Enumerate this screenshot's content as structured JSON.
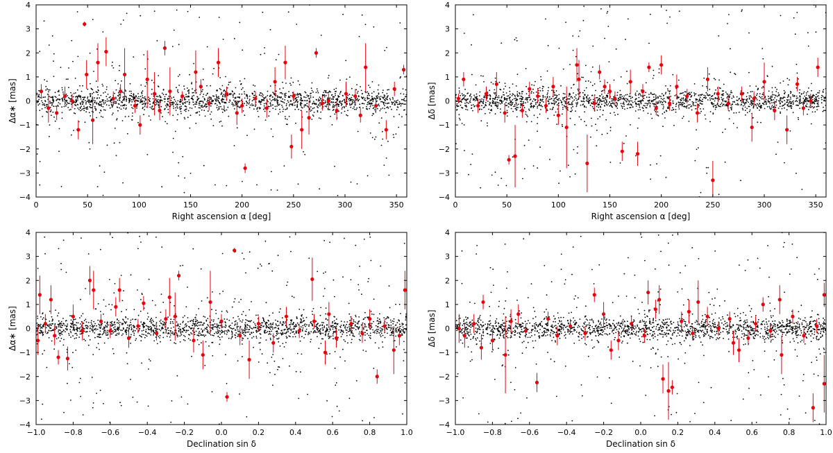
{
  "chart_data": [
    {
      "id": "ra-dalpha",
      "type": "scatter",
      "xlabel": "Right ascension α [deg]",
      "ylabel": "Δα∗ [mas]",
      "xlim": [
        0,
        360
      ],
      "ylim": [
        -4,
        4
      ],
      "xticks": [
        0,
        50,
        100,
        150,
        200,
        250,
        300,
        350
      ],
      "yticks": [
        -4,
        -3,
        -2,
        -1,
        0,
        1,
        2,
        3,
        4
      ],
      "grid": false,
      "series_colors": {
        "background": "#000000",
        "highlight": "#e8000b"
      },
      "highlight_points": [
        {
          "x": 47,
          "y": 3.2,
          "err": 0.1
        },
        {
          "x": 203,
          "y": -2.8,
          "err": 0.2
        },
        {
          "x": 248,
          "y": -1.9,
          "err": 0.5
        },
        {
          "x": 125,
          "y": 2.2,
          "err": 0.3
        },
        {
          "x": 272,
          "y": 2.0,
          "err": 0.2
        },
        {
          "x": 68,
          "y": 2.05,
          "err": 0.6
        },
        {
          "x": 60,
          "y": 1.6,
          "err": 0.8
        },
        {
          "x": 177,
          "y": 1.6,
          "err": 0.6
        },
        {
          "x": 242,
          "y": 1.6,
          "err": 0.7
        },
        {
          "x": 86,
          "y": 1.1,
          "err": 1.1
        },
        {
          "x": 49,
          "y": 1.1,
          "err": 0.6
        },
        {
          "x": 320,
          "y": 1.4,
          "err": 1.0
        },
        {
          "x": 357,
          "y": 1.3,
          "err": 0.2
        },
        {
          "x": 41,
          "y": -1.2,
          "err": 0.4
        },
        {
          "x": 101,
          "y": -1.0,
          "err": 0.4
        },
        {
          "x": 258,
          "y": -1.2,
          "err": 0.8
        },
        {
          "x": 340,
          "y": -1.2,
          "err": 0.4
        },
        {
          "x": 108,
          "y": 0.9,
          "err": 1.2
        },
        {
          "x": 155,
          "y": 1.2,
          "err": 0.9
        },
        {
          "x": 115,
          "y": 0.3,
          "err": 0.9
        },
        {
          "x": 130,
          "y": 0.4,
          "err": 1.0
        },
        {
          "x": 195,
          "y": -0.5,
          "err": 0.5
        },
        {
          "x": 232,
          "y": 0.8,
          "err": 0.6
        },
        {
          "x": 265,
          "y": -0.7,
          "err": 0.7
        },
        {
          "x": 301,
          "y": 0.3,
          "err": 0.5
        },
        {
          "x": 12,
          "y": -0.3,
          "err": 0.6
        },
        {
          "x": 28,
          "y": 0.2,
          "err": 0.4
        },
        {
          "x": 55,
          "y": -0.8,
          "err": 1.0
        },
        {
          "x": 75,
          "y": 0.1,
          "err": 0.3
        },
        {
          "x": 96,
          "y": -0.2,
          "err": 0.3
        },
        {
          "x": 142,
          "y": 0.2,
          "err": 0.2
        },
        {
          "x": 168,
          "y": -0.1,
          "err": 0.3
        },
        {
          "x": 185,
          "y": 0.3,
          "err": 0.3
        },
        {
          "x": 213,
          "y": 0.1,
          "err": 0.3
        },
        {
          "x": 224,
          "y": -0.3,
          "err": 0.4
        },
        {
          "x": 284,
          "y": 0.0,
          "err": 0.3
        },
        {
          "x": 292,
          "y": -0.4,
          "err": 0.4
        },
        {
          "x": 310,
          "y": 0.2,
          "err": 0.3
        },
        {
          "x": 330,
          "y": -0.2,
          "err": 0.3
        },
        {
          "x": 348,
          "y": 0.5,
          "err": 0.3
        },
        {
          "x": 5,
          "y": 0.4,
          "err": 0.3
        },
        {
          "x": 20,
          "y": -0.5,
          "err": 0.3
        },
        {
          "x": 35,
          "y": 0.0,
          "err": 0.3
        },
        {
          "x": 82,
          "y": 0.4,
          "err": 0.3
        },
        {
          "x": 120,
          "y": -0.4,
          "err": 0.4
        },
        {
          "x": 160,
          "y": 0.6,
          "err": 0.3
        },
        {
          "x": 200,
          "y": -0.2,
          "err": 0.3
        },
        {
          "x": 250,
          "y": 0.2,
          "err": 0.2
        },
        {
          "x": 278,
          "y": -0.1,
          "err": 0.3
        },
        {
          "x": 315,
          "y": -0.6,
          "err": 0.3
        }
      ]
    },
    {
      "id": "ra-ddelta",
      "type": "scatter",
      "xlabel": "Right ascension α [deg]",
      "ylabel": "Δδ [mas]",
      "xlim": [
        0,
        360
      ],
      "ylim": [
        -4,
        4
      ],
      "xticks": [
        0,
        50,
        100,
        150,
        200,
        250,
        300,
        350
      ],
      "yticks": [
        -4,
        -3,
        -2,
        -1,
        0,
        1,
        2,
        3,
        4
      ],
      "grid": false,
      "series_colors": {
        "background": "#000000",
        "highlight": "#e8000b"
      },
      "highlight_points": [
        {
          "x": 250,
          "y": -3.3,
          "err": 0.8
        },
        {
          "x": 128,
          "y": -2.6,
          "err": 1.2
        },
        {
          "x": 58,
          "y": -2.3,
          "err": 1.3
        },
        {
          "x": 162,
          "y": -2.1,
          "err": 0.4
        },
        {
          "x": 177,
          "y": -2.2,
          "err": 0.5
        },
        {
          "x": 52,
          "y": -2.45,
          "err": 0.2
        },
        {
          "x": 170,
          "y": 0.8,
          "err": 0.5
        },
        {
          "x": 118,
          "y": 1.5,
          "err": 0.7
        },
        {
          "x": 120,
          "y": 0.9,
          "err": 0.8
        },
        {
          "x": 200,
          "y": 1.5,
          "err": 0.4
        },
        {
          "x": 352,
          "y": 1.4,
          "err": 0.4
        },
        {
          "x": 140,
          "y": 1.2,
          "err": 0.3
        },
        {
          "x": 188,
          "y": 1.4,
          "err": 0.2
        },
        {
          "x": 108,
          "y": -1.1,
          "err": 1.7
        },
        {
          "x": 288,
          "y": -1.1,
          "err": 0.6
        },
        {
          "x": 8,
          "y": 0.9,
          "err": 0.3
        },
        {
          "x": 40,
          "y": 0.7,
          "err": 0.5
        },
        {
          "x": 95,
          "y": 0.6,
          "err": 0.4
        },
        {
          "x": 150,
          "y": 0.4,
          "err": 0.3
        },
        {
          "x": 215,
          "y": 0.6,
          "err": 0.5
        },
        {
          "x": 245,
          "y": 0.9,
          "err": 0.5
        },
        {
          "x": 300,
          "y": 0.8,
          "err": 0.8
        },
        {
          "x": 332,
          "y": 0.7,
          "err": 0.3
        },
        {
          "x": 22,
          "y": -0.2,
          "err": 0.3
        },
        {
          "x": 65,
          "y": -0.4,
          "err": 0.3
        },
        {
          "x": 80,
          "y": 0.2,
          "err": 0.3
        },
        {
          "x": 100,
          "y": -0.6,
          "err": 0.4
        },
        {
          "x": 135,
          "y": -0.1,
          "err": 0.3
        },
        {
          "x": 155,
          "y": 0.1,
          "err": 0.3
        },
        {
          "x": 195,
          "y": -0.3,
          "err": 0.3
        },
        {
          "x": 225,
          "y": 0.2,
          "err": 0.3
        },
        {
          "x": 235,
          "y": -0.5,
          "err": 0.4
        },
        {
          "x": 265,
          "y": -0.1,
          "err": 0.3
        },
        {
          "x": 278,
          "y": 0.3,
          "err": 0.3
        },
        {
          "x": 310,
          "y": -0.4,
          "err": 0.4
        },
        {
          "x": 322,
          "y": -1.2,
          "err": 0.6
        },
        {
          "x": 345,
          "y": 0.0,
          "err": 0.3
        },
        {
          "x": 3,
          "y": 0.1,
          "err": 0.2
        },
        {
          "x": 30,
          "y": 0.3,
          "err": 0.3
        },
        {
          "x": 48,
          "y": -0.5,
          "err": 0.4
        },
        {
          "x": 72,
          "y": 0.5,
          "err": 0.3
        },
        {
          "x": 88,
          "y": -0.2,
          "err": 0.3
        },
        {
          "x": 145,
          "y": 0.6,
          "err": 0.3
        },
        {
          "x": 182,
          "y": 0.4,
          "err": 0.3
        },
        {
          "x": 208,
          "y": -0.1,
          "err": 0.3
        },
        {
          "x": 255,
          "y": 0.3,
          "err": 0.3
        },
        {
          "x": 290,
          "y": 0.1,
          "err": 0.3
        },
        {
          "x": 338,
          "y": -0.3,
          "err": 0.3
        }
      ]
    },
    {
      "id": "dec-dalpha",
      "type": "scatter",
      "xlabel": "Declination sin δ",
      "ylabel": "Δα∗ [mas]",
      "xlim": [
        -1.0,
        1.0
      ],
      "ylim": [
        -4,
        4
      ],
      "xticks": [
        -1.0,
        -0.8,
        -0.6,
        -0.4,
        -0.2,
        0.0,
        0.2,
        0.4,
        0.6,
        0.8,
        1.0
      ],
      "yticks": [
        -4,
        -3,
        -2,
        -1,
        0,
        1,
        2,
        3,
        4
      ],
      "grid": false,
      "series_colors": {
        "background": "#000000",
        "highlight": "#e8000b"
      },
      "highlight_points": [
        {
          "x": 0.07,
          "y": 3.25,
          "err": 0.1
        },
        {
          "x": 0.03,
          "y": -2.85,
          "err": 0.2
        },
        {
          "x": 0.84,
          "y": -2.0,
          "err": 0.3
        },
        {
          "x": -0.23,
          "y": 2.2,
          "err": 0.2
        },
        {
          "x": 0.49,
          "y": 2.05,
          "err": 0.9
        },
        {
          "x": -0.71,
          "y": 2.0,
          "err": 0.6
        },
        {
          "x": -0.55,
          "y": 1.6,
          "err": 0.5
        },
        {
          "x": -0.69,
          "y": 1.6,
          "err": 0.8
        },
        {
          "x": 0.99,
          "y": 1.6,
          "err": 0.8
        },
        {
          "x": -0.98,
          "y": 1.4,
          "err": 0.8
        },
        {
          "x": -0.92,
          "y": 1.2,
          "err": 0.6
        },
        {
          "x": -0.28,
          "y": 1.3,
          "err": 0.8
        },
        {
          "x": -0.06,
          "y": 1.1,
          "err": 1.3
        },
        {
          "x": -0.88,
          "y": -1.2,
          "err": 0.3
        },
        {
          "x": -0.83,
          "y": -1.25,
          "err": 0.5
        },
        {
          "x": -0.1,
          "y": -1.1,
          "err": 0.6
        },
        {
          "x": 0.15,
          "y": -1.3,
          "err": 0.8
        },
        {
          "x": 0.56,
          "y": -1.0,
          "err": 0.5
        },
        {
          "x": 0.93,
          "y": -0.9,
          "err": 1.0
        },
        {
          "x": -0.57,
          "y": 0.9,
          "err": 0.4
        },
        {
          "x": -0.42,
          "y": 1.05,
          "err": 0.3
        },
        {
          "x": -0.25,
          "y": 0.5,
          "err": 1.0
        },
        {
          "x": -0.95,
          "y": 0.2,
          "err": 0.4
        },
        {
          "x": -0.9,
          "y": -0.3,
          "err": 0.4
        },
        {
          "x": -0.8,
          "y": 0.5,
          "err": 0.5
        },
        {
          "x": -0.75,
          "y": -0.1,
          "err": 0.4
        },
        {
          "x": -0.65,
          "y": 0.3,
          "err": 0.3
        },
        {
          "x": -0.5,
          "y": -0.4,
          "err": 0.4
        },
        {
          "x": -0.45,
          "y": 0.1,
          "err": 0.3
        },
        {
          "x": -0.35,
          "y": -0.2,
          "err": 0.3
        },
        {
          "x": -0.3,
          "y": 0.4,
          "err": 0.4
        },
        {
          "x": -0.15,
          "y": -0.5,
          "err": 0.5
        },
        {
          "x": 0.0,
          "y": 0.3,
          "err": 0.3
        },
        {
          "x": 0.1,
          "y": -0.3,
          "err": 0.4
        },
        {
          "x": 0.2,
          "y": 0.2,
          "err": 0.3
        },
        {
          "x": 0.28,
          "y": -0.6,
          "err": 0.4
        },
        {
          "x": 0.35,
          "y": 0.5,
          "err": 0.4
        },
        {
          "x": 0.42,
          "y": -0.1,
          "err": 0.3
        },
        {
          "x": 0.5,
          "y": 0.3,
          "err": 0.3
        },
        {
          "x": 0.62,
          "y": -0.4,
          "err": 0.4
        },
        {
          "x": 0.7,
          "y": 0.2,
          "err": 0.3
        },
        {
          "x": 0.76,
          "y": -0.2,
          "err": 0.4
        },
        {
          "x": 0.8,
          "y": 0.4,
          "err": 0.4
        },
        {
          "x": 0.88,
          "y": 0.1,
          "err": 0.3
        },
        {
          "x": 0.96,
          "y": -0.3,
          "err": 0.4
        },
        {
          "x": -0.99,
          "y": -0.5,
          "err": 0.6
        },
        {
          "x": -0.6,
          "y": -0.1,
          "err": 0.3
        },
        {
          "x": 0.58,
          "y": 0.6,
          "err": 0.5
        }
      ]
    },
    {
      "id": "dec-ddelta",
      "type": "scatter",
      "xlabel": "Declination sin δ",
      "ylabel": "Δδ [mas]",
      "xlim": [
        -1.0,
        1.0
      ],
      "ylim": [
        -4,
        4
      ],
      "xticks": [
        -1.0,
        -0.8,
        -0.6,
        -0.4,
        -0.2,
        0.0,
        0.2,
        0.4,
        0.6,
        0.8,
        1.0
      ],
      "yticks": [
        -4,
        -3,
        -2,
        -1,
        0,
        1,
        2,
        3,
        4
      ],
      "grid": false,
      "series_colors": {
        "background": "#000000",
        "highlight": "#e8000b"
      },
      "highlight_points": [
        {
          "x": 0.93,
          "y": -3.3,
          "err": 0.6
        },
        {
          "x": 0.15,
          "y": -2.6,
          "err": 1.2
        },
        {
          "x": 0.99,
          "y": -2.3,
          "err": 1.2
        },
        {
          "x": 0.17,
          "y": -2.45,
          "err": 0.3
        },
        {
          "x": 0.12,
          "y": -2.1,
          "err": 0.6
        },
        {
          "x": -0.56,
          "y": -2.25,
          "err": 0.4
        },
        {
          "x": -0.73,
          "y": -1.1,
          "err": 1.6
        },
        {
          "x": 0.04,
          "y": 1.5,
          "err": 0.5
        },
        {
          "x": 0.1,
          "y": 1.2,
          "err": 0.6
        },
        {
          "x": 0.31,
          "y": 1.1,
          "err": 0.9
        },
        {
          "x": 0.75,
          "y": 1.2,
          "err": 0.6
        },
        {
          "x": -0.25,
          "y": 1.4,
          "err": 0.3
        },
        {
          "x": -0.85,
          "y": 1.1,
          "err": 0.3
        },
        {
          "x": 0.99,
          "y": 1.4,
          "err": 0.5
        },
        {
          "x": 0.66,
          "y": 1.0,
          "err": 0.3
        },
        {
          "x": 0.76,
          "y": -1.1,
          "err": 0.8
        },
        {
          "x": 0.53,
          "y": -0.9,
          "err": 0.5
        },
        {
          "x": -0.95,
          "y": -0.3,
          "err": 0.5
        },
        {
          "x": -0.9,
          "y": 0.2,
          "err": 0.4
        },
        {
          "x": -0.8,
          "y": -0.5,
          "err": 0.4
        },
        {
          "x": -0.7,
          "y": 0.3,
          "err": 0.5
        },
        {
          "x": -0.62,
          "y": -0.1,
          "err": 0.3
        },
        {
          "x": -0.5,
          "y": 0.4,
          "err": 0.3
        },
        {
          "x": -0.45,
          "y": -0.3,
          "err": 0.4
        },
        {
          "x": -0.38,
          "y": 0.1,
          "err": 0.3
        },
        {
          "x": -0.3,
          "y": -0.2,
          "err": 0.3
        },
        {
          "x": -0.2,
          "y": 0.6,
          "err": 0.5
        },
        {
          "x": -0.12,
          "y": -0.5,
          "err": 0.4
        },
        {
          "x": -0.05,
          "y": 0.2,
          "err": 0.3
        },
        {
          "x": 0.02,
          "y": -0.3,
          "err": 0.3
        },
        {
          "x": 0.08,
          "y": 0.8,
          "err": 0.4
        },
        {
          "x": 0.22,
          "y": 0.3,
          "err": 0.4
        },
        {
          "x": 0.28,
          "y": -0.2,
          "err": 0.3
        },
        {
          "x": 0.36,
          "y": 0.5,
          "err": 0.4
        },
        {
          "x": 0.42,
          "y": 0.0,
          "err": 0.3
        },
        {
          "x": 0.48,
          "y": 0.4,
          "err": 0.3
        },
        {
          "x": 0.58,
          "y": -0.4,
          "err": 0.3
        },
        {
          "x": 0.62,
          "y": 0.2,
          "err": 0.3
        },
        {
          "x": 0.7,
          "y": -0.1,
          "err": 0.3
        },
        {
          "x": 0.82,
          "y": 0.5,
          "err": 0.3
        },
        {
          "x": 0.88,
          "y": -0.3,
          "err": 0.3
        },
        {
          "x": 0.95,
          "y": 0.1,
          "err": 0.3
        },
        {
          "x": -0.98,
          "y": 0.0,
          "err": 0.6
        },
        {
          "x": -0.86,
          "y": -0.8,
          "err": 0.5
        },
        {
          "x": -0.66,
          "y": 0.6,
          "err": 0.4
        },
        {
          "x": -0.16,
          "y": -0.9,
          "err": 0.4
        },
        {
          "x": 0.26,
          "y": 0.7,
          "err": 0.5
        },
        {
          "x": 0.5,
          "y": -0.6,
          "err": 0.5
        }
      ]
    }
  ]
}
